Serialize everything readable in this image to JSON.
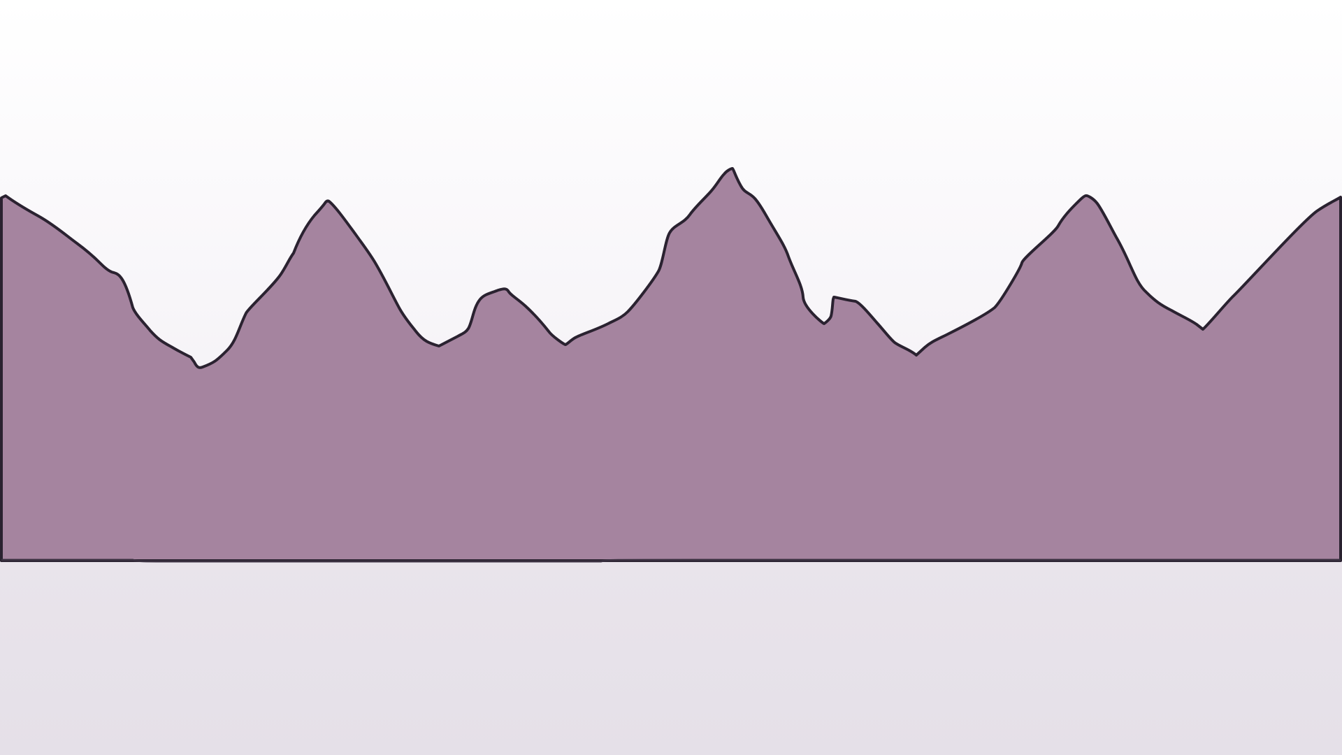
{
  "scene": {
    "colors": {
      "sky_top": "#ffffff",
      "sky_mid": "#f4f1f6",
      "ground_top": "#ebe6ed",
      "ground_bottom": "#e5e0e8",
      "fill": "#a5849f",
      "stroke": "#2a2230",
      "baseline": "#3a3040"
    }
  }
}
